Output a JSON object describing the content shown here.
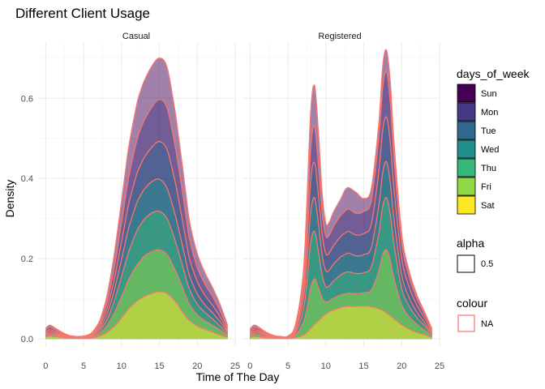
{
  "chart_data": {
    "type": "area",
    "subtype": "stacked-density",
    "title": "Different Client Usage",
    "xlabel": "Time of The Day",
    "ylabel": "Density",
    "xlim": [
      -1,
      25
    ],
    "ylim": [
      -0.02,
      0.74
    ],
    "xticks": [
      0,
      5,
      10,
      15,
      20,
      25
    ],
    "yticks": [
      0.0,
      0.2,
      0.4,
      0.6
    ],
    "ytick_labels": [
      "0.0",
      "0.2",
      "0.4",
      "0.6"
    ],
    "grid": true,
    "x": [
      0,
      0.5,
      1,
      2,
      3,
      4,
      5,
      6,
      7,
      7.5,
      8,
      8.5,
      9,
      9.5,
      10,
      10.5,
      11,
      12,
      12.5,
      13,
      14,
      15,
      16,
      17,
      17.5,
      18,
      18.5,
      19,
      20,
      21,
      22,
      23,
      24
    ],
    "series_order": [
      "Sat",
      "Fri",
      "Thu",
      "Wed",
      "Tue",
      "Mon",
      "Sun"
    ],
    "cumulative": true,
    "panels": [
      {
        "name": "Casual",
        "series": [
          {
            "name": "Sat",
            "values": [
              0.005,
              0.007,
              0.006,
              0.004,
              0.002,
              0.001,
              0.001,
              0.002,
              0.006,
              0.01,
              0.015,
              0.022,
              0.03,
              0.04,
              0.052,
              0.064,
              0.076,
              0.094,
              0.1,
              0.106,
              0.113,
              0.118,
              0.113,
              0.095,
              0.083,
              0.068,
              0.055,
              0.045,
              0.032,
              0.024,
              0.017,
              0.01,
              0.004
            ]
          },
          {
            "name": "Fri",
            "values": [
              0.008,
              0.011,
              0.01,
              0.006,
              0.003,
              0.002,
              0.002,
              0.004,
              0.012,
              0.02,
              0.03,
              0.045,
              0.062,
              0.083,
              0.105,
              0.128,
              0.15,
              0.183,
              0.195,
              0.206,
              0.218,
              0.222,
              0.21,
              0.175,
              0.153,
              0.13,
              0.106,
              0.085,
              0.06,
              0.045,
              0.034,
              0.022,
              0.008
            ]
          },
          {
            "name": "Thu",
            "values": [
              0.011,
              0.015,
              0.013,
              0.008,
              0.004,
              0.002,
              0.003,
              0.006,
              0.018,
              0.03,
              0.045,
              0.066,
              0.092,
              0.122,
              0.155,
              0.188,
              0.22,
              0.268,
              0.284,
              0.298,
              0.314,
              0.318,
              0.3,
              0.25,
              0.219,
              0.186,
              0.152,
              0.122,
              0.087,
              0.066,
              0.05,
              0.032,
              0.012
            ]
          },
          {
            "name": "Wed",
            "values": [
              0.014,
              0.019,
              0.017,
              0.01,
              0.005,
              0.003,
              0.004,
              0.008,
              0.023,
              0.038,
              0.058,
              0.085,
              0.118,
              0.157,
              0.198,
              0.24,
              0.28,
              0.338,
              0.357,
              0.373,
              0.392,
              0.398,
              0.376,
              0.315,
              0.277,
              0.236,
              0.194,
              0.156,
              0.112,
              0.085,
              0.065,
              0.043,
              0.016
            ]
          },
          {
            "name": "Tue",
            "values": [
              0.017,
              0.023,
              0.021,
              0.012,
              0.006,
              0.004,
              0.005,
              0.01,
              0.028,
              0.047,
              0.071,
              0.104,
              0.144,
              0.191,
              0.241,
              0.292,
              0.34,
              0.41,
              0.433,
              0.452,
              0.478,
              0.492,
              0.472,
              0.398,
              0.351,
              0.3,
              0.247,
              0.198,
              0.143,
              0.109,
              0.084,
              0.055,
              0.02
            ]
          },
          {
            "name": "Mon",
            "values": [
              0.022,
              0.029,
              0.026,
              0.015,
              0.008,
              0.005,
              0.006,
              0.012,
              0.034,
              0.056,
              0.085,
              0.125,
              0.173,
              0.229,
              0.289,
              0.35,
              0.408,
              0.493,
              0.522,
              0.545,
              0.578,
              0.597,
              0.577,
              0.489,
              0.432,
              0.371,
              0.306,
              0.246,
              0.178,
              0.137,
              0.106,
              0.07,
              0.026
            ]
          },
          {
            "name": "Sun",
            "values": [
              0.026,
              0.034,
              0.03,
              0.018,
              0.009,
              0.006,
              0.007,
              0.014,
              0.04,
              0.066,
              0.1,
              0.148,
              0.205,
              0.272,
              0.343,
              0.415,
              0.483,
              0.583,
              0.617,
              0.643,
              0.68,
              0.7,
              0.678,
              0.575,
              0.508,
              0.436,
              0.36,
              0.29,
              0.212,
              0.165,
              0.128,
              0.086,
              0.033
            ]
          }
        ]
      },
      {
        "name": "Registered",
        "series": [
          {
            "name": "Sat",
            "values": [
              0.004,
              0.006,
              0.005,
              0.003,
              0.002,
              0.001,
              0.001,
              0.003,
              0.009,
              0.016,
              0.026,
              0.036,
              0.045,
              0.054,
              0.062,
              0.068,
              0.072,
              0.078,
              0.08,
              0.081,
              0.081,
              0.082,
              0.08,
              0.075,
              0.071,
              0.065,
              0.058,
              0.05,
              0.035,
              0.024,
              0.016,
              0.01,
              0.004
            ]
          },
          {
            "name": "Fri",
            "values": [
              0.008,
              0.012,
              0.01,
              0.006,
              0.003,
              0.002,
              0.002,
              0.01,
              0.04,
              0.075,
              0.128,
              0.15,
              0.128,
              0.102,
              0.092,
              0.095,
              0.101,
              0.11,
              0.112,
              0.114,
              0.113,
              0.115,
              0.122,
              0.17,
              0.21,
              0.222,
              0.195,
              0.15,
              0.085,
              0.055,
              0.036,
              0.022,
              0.008
            ]
          },
          {
            "name": "Thu",
            "values": [
              0.011,
              0.016,
              0.014,
              0.009,
              0.004,
              0.002,
              0.003,
              0.016,
              0.07,
              0.14,
              0.24,
              0.268,
              0.22,
              0.16,
              0.13,
              0.133,
              0.144,
              0.16,
              0.165,
              0.167,
              0.163,
              0.165,
              0.18,
              0.265,
              0.33,
              0.352,
              0.31,
              0.235,
              0.126,
              0.081,
              0.053,
              0.033,
              0.012
            ]
          },
          {
            "name": "Wed",
            "values": [
              0.014,
              0.02,
              0.018,
              0.011,
              0.005,
              0.003,
              0.004,
              0.021,
              0.095,
              0.19,
              0.315,
              0.352,
              0.29,
              0.21,
              0.17,
              0.173,
              0.186,
              0.205,
              0.21,
              0.214,
              0.207,
              0.21,
              0.228,
              0.335,
              0.415,
              0.442,
              0.39,
              0.296,
              0.16,
              0.102,
              0.067,
              0.041,
              0.015
            ]
          },
          {
            "name": "Tue",
            "values": [
              0.017,
              0.024,
              0.022,
              0.013,
              0.006,
              0.004,
              0.005,
              0.026,
              0.118,
              0.24,
              0.395,
              0.44,
              0.362,
              0.262,
              0.212,
              0.216,
              0.232,
              0.256,
              0.263,
              0.268,
              0.259,
              0.263,
              0.286,
              0.42,
              0.52,
              0.553,
              0.489,
              0.371,
              0.2,
              0.128,
              0.084,
              0.052,
              0.019
            ]
          },
          {
            "name": "Mon",
            "values": [
              0.021,
              0.029,
              0.027,
              0.016,
              0.008,
              0.005,
              0.006,
              0.031,
              0.141,
              0.29,
              0.475,
              0.53,
              0.437,
              0.316,
              0.256,
              0.261,
              0.28,
              0.309,
              0.318,
              0.324,
              0.313,
              0.318,
              0.345,
              0.506,
              0.626,
              0.667,
              0.589,
              0.447,
              0.241,
              0.154,
              0.101,
              0.062,
              0.023
            ]
          },
          {
            "name": "Sun",
            "values": [
              0.025,
              0.034,
              0.031,
              0.018,
              0.009,
              0.006,
              0.007,
              0.036,
              0.16,
              0.34,
              0.566,
              0.632,
              0.52,
              0.365,
              0.288,
              0.293,
              0.316,
              0.35,
              0.37,
              0.377,
              0.365,
              0.35,
              0.375,
              0.54,
              0.68,
              0.72,
              0.64,
              0.486,
              0.262,
              0.168,
              0.11,
              0.068,
              0.025
            ]
          }
        ]
      }
    ],
    "legend": {
      "placement": "right",
      "days_of_week": {
        "title": "days_of_week",
        "items": [
          {
            "label": "Sun",
            "color": "#440154"
          },
          {
            "label": "Mon",
            "color": "#443A83"
          },
          {
            "label": "Tue",
            "color": "#31688E"
          },
          {
            "label": "Wed",
            "color": "#21908C"
          },
          {
            "label": "Thu",
            "color": "#35B779"
          },
          {
            "label": "Fri",
            "color": "#8FD744"
          },
          {
            "label": "Sat",
            "color": "#FDE725"
          }
        ]
      },
      "alpha": {
        "title": "alpha",
        "label": "0.5"
      },
      "colour": {
        "title": "colour",
        "label": "NA",
        "color": "#F8766D"
      }
    }
  }
}
